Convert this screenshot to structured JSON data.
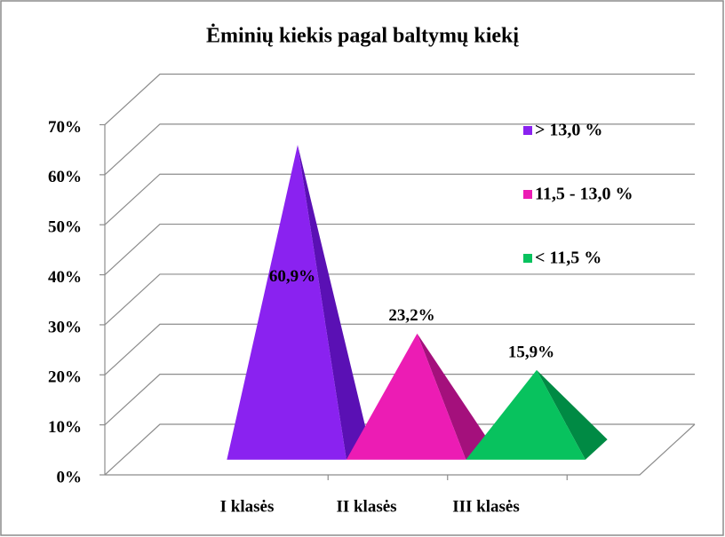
{
  "chart_data": {
    "type": "pyramid3d",
    "title": "Ėminių kiekis pagal baltymų kiekį",
    "categories": [
      "I klasės",
      "II klasės",
      "III klasės"
    ],
    "series": [
      {
        "name": "> 13,0 %",
        "color": "#8a22f0",
        "side_color": "#5a10b4",
        "values": [
          60.9,
          null,
          null
        ],
        "value_labels": [
          "60,9%",
          null,
          null
        ]
      },
      {
        "name": "11,5 - 13,0 %",
        "color": "#ec1cb4",
        "side_color": "#a4107c",
        "values": [
          null,
          23.2,
          null
        ],
        "value_labels": [
          null,
          "23,2%",
          null
        ]
      },
      {
        "name": "< 11,5 %",
        "color": "#08c25e",
        "side_color": "#008a44",
        "values": [
          null,
          null,
          15.9
        ],
        "value_labels": [
          null,
          null,
          "15,9%"
        ]
      }
    ],
    "ylim": [
      0,
      70
    ],
    "yticks": [
      {
        "value": 0,
        "label": "0%"
      },
      {
        "value": 10,
        "label": "10%"
      },
      {
        "value": 20,
        "label": "20%"
      },
      {
        "value": 30,
        "label": "30%"
      },
      {
        "value": 40,
        "label": "40%"
      },
      {
        "value": 50,
        "label": "50%"
      },
      {
        "value": 60,
        "label": "60%"
      },
      {
        "value": 70,
        "label": "70%"
      }
    ],
    "grid": true,
    "legend": "right"
  }
}
